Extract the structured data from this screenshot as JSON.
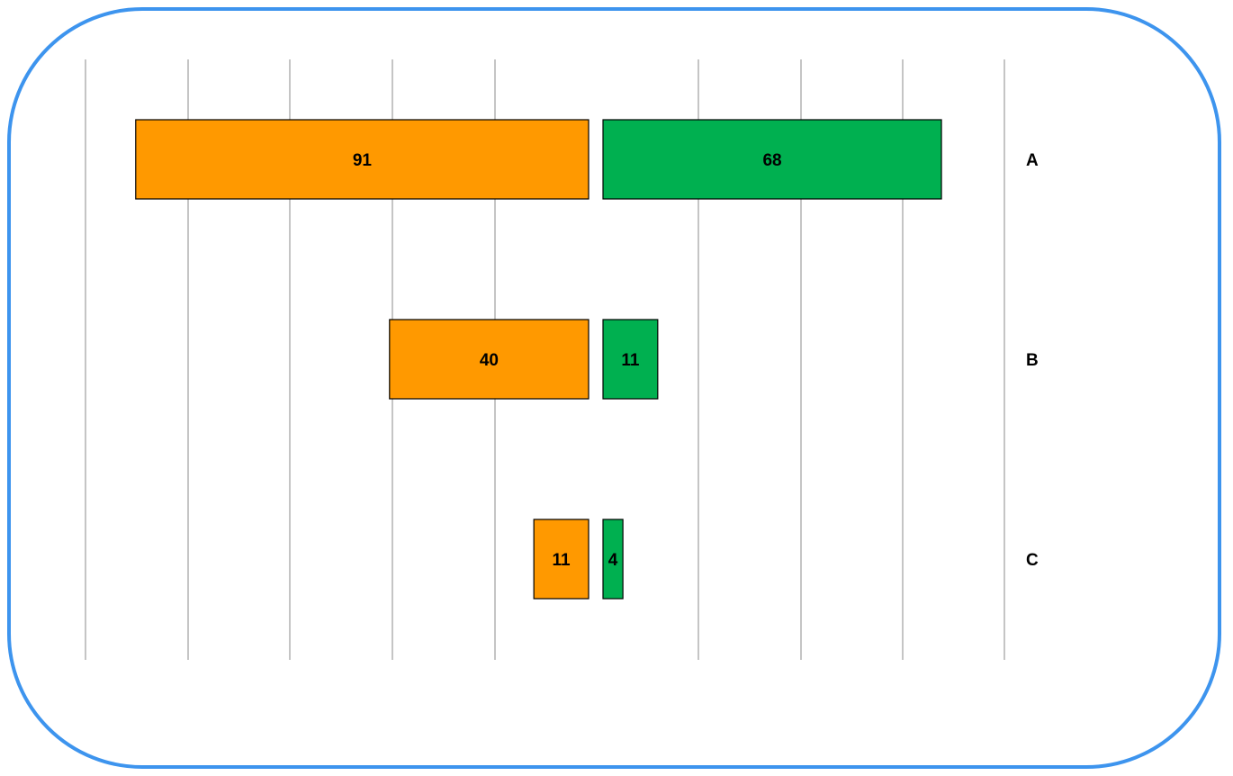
{
  "chart_data": {
    "type": "bar",
    "orientation": "horizontal",
    "layout": "butterfly",
    "categories": [
      "A",
      "B",
      "C"
    ],
    "series": [
      {
        "values": [
          91,
          40,
          11
        ],
        "color": "#ff9900",
        "side": "left"
      },
      {
        "values": [
          68,
          11,
          4
        ],
        "color": "#00b050",
        "side": "right"
      }
    ],
    "xlim": [
      0,
      100
    ],
    "grid": true,
    "legend": "none",
    "frame_color": "#3d94ee"
  }
}
